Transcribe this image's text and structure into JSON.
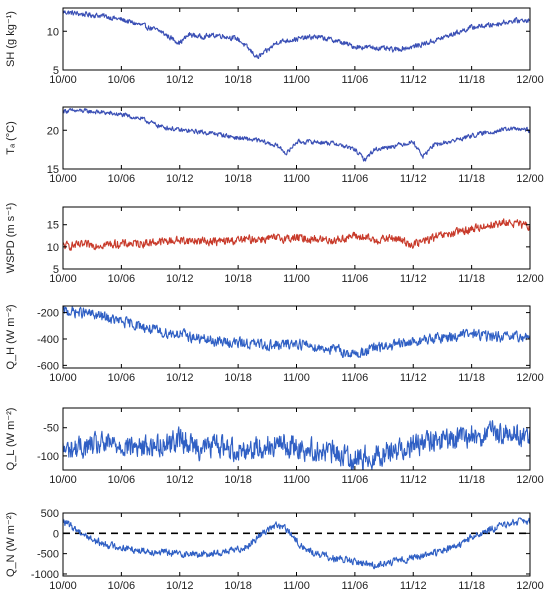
{
  "chart_data": [
    {
      "type": "line",
      "ylabel": "SH (g kg⁻¹)",
      "ylim": [
        5,
        13
      ],
      "yticks": [
        "5",
        "10"
      ],
      "yticks_values": [
        5,
        10
      ],
      "xticks": [
        "10/00",
        "10/06",
        "10/12",
        "10/18",
        "11/00",
        "11/06",
        "11/12",
        "11/18",
        "12/00"
      ],
      "xlim": [
        0,
        48
      ],
      "grid": false,
      "series": [
        {
          "color": "#3a4fb5",
          "x": [
            0,
            2,
            4,
            6,
            8,
            10,
            11,
            12,
            13,
            14,
            16,
            18,
            19,
            20,
            21,
            22,
            24,
            26,
            28,
            30,
            32,
            34,
            36,
            38,
            40,
            42,
            44,
            46,
            48
          ],
          "values": [
            12.5,
            12.2,
            12.0,
            11.5,
            10.8,
            10.0,
            9.2,
            8.5,
            9.6,
            9.3,
            9.5,
            9.0,
            7.8,
            6.6,
            7.5,
            8.6,
            9.0,
            9.3,
            8.8,
            8.0,
            7.9,
            7.6,
            8.0,
            8.7,
            9.6,
            10.5,
            10.8,
            11.3,
            11.5
          ],
          "noise": 0.45,
          "noise_period": 0.25
        }
      ]
    },
    {
      "type": "line",
      "ylabel": "Tₐ (°C)",
      "ylim": [
        15,
        23
      ],
      "yticks": [
        "15",
        "20"
      ],
      "yticks_values": [
        15,
        20
      ],
      "xticks": [
        "10/00",
        "10/06",
        "10/12",
        "10/18",
        "11/00",
        "11/06",
        "11/12",
        "11/18",
        "12/00"
      ],
      "xlim": [
        0,
        48
      ],
      "grid": false,
      "series": [
        {
          "color": "#3a4fb5",
          "x": [
            0,
            2,
            4,
            6,
            8,
            10,
            12,
            14,
            16,
            18,
            20,
            22,
            23,
            24,
            26,
            28,
            30,
            31,
            32,
            34,
            36,
            37,
            38,
            40,
            42,
            44,
            46,
            48
          ],
          "values": [
            22.5,
            22.5,
            22.3,
            22.0,
            21.5,
            20.5,
            20.0,
            19.8,
            19.5,
            19.0,
            18.7,
            18.0,
            17.0,
            18.5,
            18.5,
            18.3,
            17.5,
            16.2,
            17.5,
            18.0,
            18.5,
            16.6,
            18.0,
            18.6,
            19.3,
            19.8,
            20.2,
            20.0
          ],
          "noise": 0.4,
          "noise_period": 0.3
        }
      ]
    },
    {
      "type": "line",
      "ylabel": "WSPD (m s⁻¹)",
      "ylim": [
        5,
        19
      ],
      "yticks": [
        "5",
        "10",
        "15"
      ],
      "yticks_values": [
        5,
        10,
        15
      ],
      "xticks": [
        "10/00",
        "10/06",
        "10/12",
        "10/18",
        "11/00",
        "11/06",
        "11/12",
        "11/18",
        "12/00"
      ],
      "xlim": [
        0,
        48
      ],
      "grid": false,
      "series": [
        {
          "color": "#c83a2a",
          "x": [
            0,
            4,
            8,
            12,
            16,
            20,
            24,
            28,
            30,
            32,
            34,
            36,
            38,
            40,
            42,
            44,
            46,
            48
          ],
          "values": [
            10.2,
            10.5,
            10.8,
            11.5,
            11.2,
            11.8,
            12.0,
            11.5,
            12.5,
            11.5,
            12.0,
            10.5,
            12.0,
            13.0,
            14.0,
            15.0,
            15.5,
            14.5
          ],
          "noise": 1.3,
          "noise_period": 0.15
        }
      ]
    },
    {
      "type": "line",
      "ylabel": "Q_H (W m⁻²)",
      "ylim": [
        -620,
        -150
      ],
      "yticks": [
        "-600",
        "-400",
        "-200"
      ],
      "yticks_values": [
        -600,
        -400,
        -200
      ],
      "xticks": [
        "10/00",
        "10/06",
        "10/12",
        "10/18",
        "11/00",
        "11/06",
        "11/12",
        "11/18",
        "12/00"
      ],
      "xlim": [
        0,
        48
      ],
      "grid": false,
      "series": [
        {
          "color": "#2f5fc4",
          "x": [
            0,
            2,
            4,
            6,
            8,
            10,
            12,
            14,
            16,
            18,
            20,
            22,
            24,
            26,
            28,
            30,
            32,
            34,
            36,
            38,
            40,
            42,
            44,
            46,
            48
          ],
          "values": [
            -190,
            -200,
            -230,
            -270,
            -300,
            -350,
            -360,
            -400,
            -420,
            -430,
            -440,
            -450,
            -430,
            -460,
            -480,
            -520,
            -470,
            -450,
            -420,
            -400,
            -380,
            -360,
            -380,
            -390,
            -380
          ],
          "noise": 55,
          "noise_period": 0.18
        }
      ]
    },
    {
      "type": "line",
      "ylabel": "Q_L (W m⁻²)",
      "ylim": [
        -125,
        -15
      ],
      "yticks": [
        "-100",
        "-50"
      ],
      "yticks_values": [
        -100,
        -50
      ],
      "xticks": [
        "10/00",
        "10/06",
        "10/12",
        "10/18",
        "11/00",
        "11/06",
        "11/12",
        "11/18",
        "12/00"
      ],
      "xlim": [
        0,
        48
      ],
      "grid": false,
      "series": [
        {
          "color": "#2f5fc4",
          "x": [
            0,
            2,
            4,
            6,
            8,
            10,
            12,
            14,
            16,
            18,
            20,
            22,
            24,
            26,
            28,
            30,
            32,
            34,
            36,
            38,
            40,
            42,
            44,
            46,
            48
          ],
          "values": [
            -90,
            -85,
            -80,
            -80,
            -85,
            -80,
            -70,
            -85,
            -80,
            -90,
            -85,
            -80,
            -85,
            -90,
            -95,
            -105,
            -100,
            -90,
            -80,
            -75,
            -70,
            -65,
            -60,
            -60,
            -65
          ],
          "noise": 28,
          "noise_period": 0.35
        }
      ]
    },
    {
      "type": "line",
      "ylabel": "Q_N (W m⁻²)",
      "ylim": [
        -1050,
        500
      ],
      "yticks": [
        "-1000",
        "-500",
        "0",
        "500"
      ],
      "yticks_values": [
        -1000,
        -500,
        0,
        500
      ],
      "xticks": [
        "10/00",
        "10/06",
        "10/12",
        "10/18",
        "11/00",
        "11/06",
        "11/12",
        "11/18",
        "12/00"
      ],
      "xlim": [
        0,
        48
      ],
      "grid": false,
      "reference_line": 0,
      "series": [
        {
          "color": "#2f5fc4",
          "x": [
            0,
            1,
            2,
            3,
            4,
            6,
            8,
            10,
            12,
            14,
            16,
            18,
            19,
            20,
            21,
            22,
            23,
            24,
            25,
            26,
            28,
            30,
            32,
            34,
            36,
            38,
            40,
            41,
            42,
            43,
            44,
            46,
            48
          ],
          "values": [
            300,
            150,
            0,
            -150,
            -250,
            -350,
            -420,
            -460,
            -500,
            -520,
            -480,
            -400,
            -300,
            -100,
            100,
            200,
            100,
            -200,
            -400,
            -500,
            -620,
            -700,
            -780,
            -700,
            -600,
            -500,
            -350,
            -250,
            -100,
            0,
            100,
            250,
            300
          ],
          "noise": 120,
          "noise_period": 0.2
        }
      ]
    }
  ]
}
